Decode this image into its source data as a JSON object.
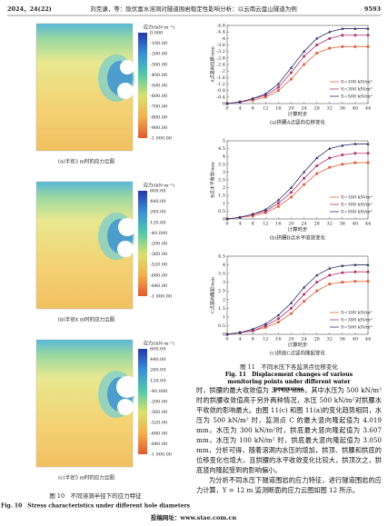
{
  "header": {
    "issue": "2024，24(22)",
    "running_title": "刘克谦，等：隐伏富水溶洞对隧道围岩稳定性影响分析：以云南云盘山隧道为例",
    "page_number": "9593"
  },
  "fig10": {
    "panels": [
      {
        "caption": "(a)半径3 m时的应力云图",
        "colorbar_title": "应力/(kN·m⁻²)",
        "colorbar_labels": [
          "0.000",
          "-100.00",
          "-200.00",
          "-300.00",
          "-400.00",
          "-500.00",
          "-600.00",
          "-700.00",
          "-800.00",
          "-900.00",
          "-1 000.00"
        ]
      },
      {
        "caption": "(b)半径4 m时的应力云图",
        "colorbar_title": "应力/(kN·m⁻²)",
        "colorbar_labels": [
          "600.00",
          "440.00",
          "280.00",
          "120.00",
          "-40.000",
          "-200.00",
          "-360.00",
          "-520.00",
          "-680.00",
          "-840.00",
          "-1 000.00"
        ]
      },
      {
        "caption": "(c)半径5 m时的应力云图",
        "colorbar_title": "应力/(kN·m⁻²)",
        "colorbar_labels": [
          "600.00",
          "440.00",
          "280.00",
          "120.00",
          "-40.000",
          "-200.00",
          "-360.00",
          "-520.00",
          "-680.00",
          "-840.00",
          "-1 000.00"
        ]
      }
    ],
    "caption_cn": "图 10　不同溶洞半径下的应力特征",
    "caption_en": "Fig. 10　Stress characteristics under different hole diameters"
  },
  "chart_data": [
    {
      "type": "line",
      "title": "(a)拱腰A点竖向位移变化",
      "xlabel": "计算时步",
      "ylabel": "A点竖向位移/mm",
      "x": [
        0,
        4,
        8,
        12,
        16,
        20,
        24,
        28,
        32,
        36,
        40,
        44
      ],
      "xlim": [
        0,
        44
      ],
      "xticks": [
        0,
        4,
        8,
        12,
        16,
        20,
        24,
        28,
        32,
        36,
        40,
        44
      ],
      "ylim": [
        0,
        -4.8
      ],
      "yticks": [
        0,
        -0.4,
        -0.8,
        -1.2,
        -1.6,
        -2,
        -2.4,
        -2.8,
        -3.2,
        -3.6,
        -4,
        -4.4,
        -4.8
      ],
      "series": [
        {
          "name": "S=100 kN/m²",
          "color": "#e0603a",
          "values": [
            0,
            -0.1,
            -0.2,
            -0.4,
            -0.8,
            -1.5,
            -2.4,
            -3.1,
            -3.4,
            -3.5,
            -3.5,
            -3.5
          ]
        },
        {
          "name": "S=300 kN/m²",
          "color": "#b0306a",
          "values": [
            0,
            -0.1,
            -0.3,
            -0.5,
            -1,
            -1.9,
            -2.9,
            -3.6,
            -4,
            -4.2,
            -4.2,
            -4.2
          ]
        },
        {
          "name": "S=500 kN/m²",
          "color": "#2a2f6e",
          "values": [
            0,
            -0.1,
            -0.3,
            -0.6,
            -1.2,
            -2.2,
            -3.2,
            -4,
            -4.4,
            -4.6,
            -4.6,
            -4.6
          ]
        }
      ]
    },
    {
      "type": "line",
      "title": "(b)拱腰B点水平收敛变化",
      "xlabel": "计算时步",
      "ylabel": "B点水平收敛/mm",
      "x": [
        0,
        4,
        8,
        12,
        16,
        20,
        24,
        28,
        32,
        36,
        40,
        44
      ],
      "xlim": [
        0,
        44
      ],
      "xticks": [
        0,
        4,
        8,
        12,
        16,
        20,
        24,
        28,
        32,
        36,
        40,
        44
      ],
      "ylim": [
        0,
        5
      ],
      "yticks": [
        0,
        0.5,
        1,
        1.5,
        2,
        2.5,
        3,
        3.5,
        4,
        4.5,
        5
      ],
      "series": [
        {
          "name": "S=100 kN/m²",
          "color": "#e0603a",
          "values": [
            0,
            0.1,
            0.2,
            0.4,
            0.8,
            1.4,
            2.2,
            2.9,
            3.3,
            3.5,
            3.6,
            3.6
          ]
        },
        {
          "name": "S=300 kN/m²",
          "color": "#b0306a",
          "values": [
            0,
            0.1,
            0.3,
            0.5,
            1,
            1.7,
            2.6,
            3.4,
            3.9,
            4.1,
            4.2,
            4.2
          ]
        },
        {
          "name": "S=500 kN/m²",
          "color": "#2a2f6e",
          "values": [
            0,
            0.1,
            0.3,
            0.6,
            1.2,
            2,
            3,
            3.9,
            4.5,
            4.7,
            4.8,
            4.8
          ]
        }
      ]
    },
    {
      "type": "line",
      "title": "(c)拱底C点竖向隆起变化",
      "xlabel": "计算时步",
      "ylabel": "C点竖向隆起/mm",
      "x": [
        0,
        4,
        8,
        12,
        16,
        20,
        24,
        28,
        32,
        36,
        40,
        44
      ],
      "xlim": [
        0,
        44
      ],
      "xticks": [
        0,
        4,
        8,
        12,
        16,
        20,
        24,
        28,
        32,
        36,
        40,
        44
      ],
      "ylim": [
        0,
        4.5
      ],
      "yticks": [
        0,
        0.5,
        1,
        1.5,
        2,
        2.5,
        3,
        3.5,
        4,
        4.5
      ],
      "series": [
        {
          "name": "S=100 kN/m²",
          "color": "#e0603a",
          "values": [
            0,
            0.1,
            0.2,
            0.4,
            0.7,
            1.2,
            1.9,
            2.5,
            2.9,
            3,
            3.05,
            3.05
          ]
        },
        {
          "name": "S=300 kN/m²",
          "color": "#b0306a",
          "values": [
            0,
            0.1,
            0.2,
            0.5,
            0.9,
            1.5,
            2.3,
            3,
            3.4,
            3.55,
            3.6,
            3.6
          ]
        },
        {
          "name": "S=500 kN/m²",
          "color": "#2a2f6e",
          "values": [
            0,
            0.1,
            0.3,
            0.6,
            1.1,
            1.8,
            2.7,
            3.4,
            3.8,
            3.95,
            4,
            4
          ]
        }
      ]
    }
  ],
  "fig11": {
    "caption_cn": "图 11　不同水压下各监测点位移变化",
    "caption_en": "Fig. 11　Displacement changes of various monitoring points under different water pressures"
  },
  "body": {
    "paragraphs": [
      "时，拱腰的最大收敛值为 3.762 mm，其中水压为 500 kN/m²时的拱腰收敛值高于另外两种情况，水压 500 kN/m²对拱腰水平收敛的影响最大。由图 11(c) 和图 11(a)的变化趋势相同，水压为 500 kN/m² 时，监测点 C 的最大竖向隆起值为 4.019 mm，水压为 300 kN/m²时，拱底最大竖向隆起值为 3.607 mm，水压为 100 kN/m² 时，拱底最大竖向隆起值为 3.050 mm，分析可得，随着溶洞内水压的增加，拱顶、拱腰和拱底的位移变化也增大，且拱腰的水平收敛变化比较大，拱顶次之，拱底竖向隆起受到的影响偏小。",
      "为分析不同水压下隧道围岩的应力特征，进行隧道围岩的应力计算，Y = 12 m 监测断面的应力云图如图 12 所示。"
    ]
  },
  "footer": {
    "text": "投稿网址：www.stae.com.cn"
  }
}
